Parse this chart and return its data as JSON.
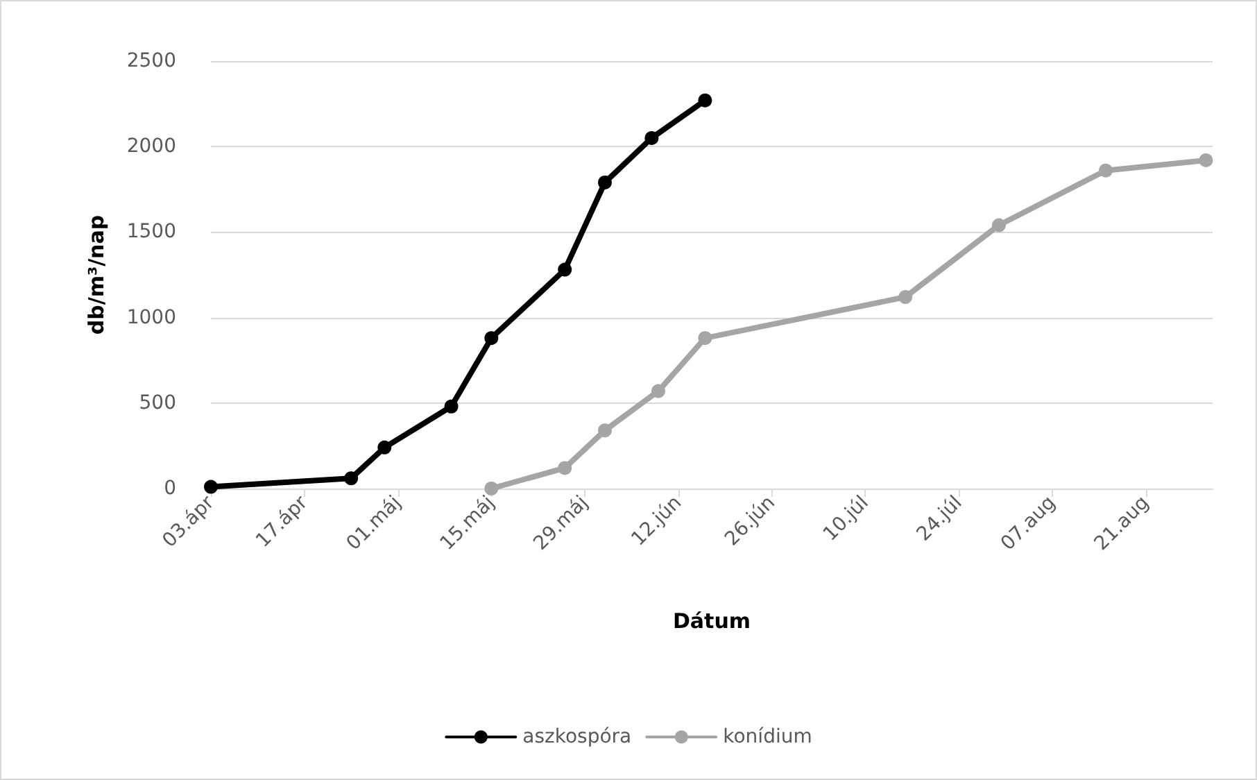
{
  "chart_data": {
    "type": "line",
    "xlabel": "Dátum",
    "ylabel": "db/m³/nap",
    "xlim": [
      "--04-03",
      "--08-31"
    ],
    "xticks": [
      {
        "value": "--04-03",
        "label": "03.ápr"
      },
      {
        "value": "--04-17",
        "label": "17.ápr"
      },
      {
        "value": "--05-01",
        "label": "01.máj"
      },
      {
        "value": "--05-15",
        "label": "15.máj"
      },
      {
        "value": "--05-29",
        "label": "29.máj"
      },
      {
        "value": "--06-12",
        "label": "12.jún"
      },
      {
        "value": "--06-26",
        "label": "26.jún"
      },
      {
        "value": "--07-10",
        "label": "10.júl"
      },
      {
        "value": "--07-24",
        "label": "24.júl"
      },
      {
        "value": "--08-07",
        "label": "07.aug"
      },
      {
        "value": "--08-21",
        "label": "21.aug"
      }
    ],
    "ylim": [
      0,
      2500
    ],
    "yticks": [
      0,
      500,
      1000,
      1500,
      2000,
      2500
    ],
    "grid": "y",
    "legend": "bottom",
    "marker": "circle",
    "line_style": "solid",
    "series": [
      {
        "name": "aszkospóra",
        "color": "#000000",
        "x": [
          "--04-03",
          "--04-24",
          "--04-29",
          "--05-09",
          "--05-15",
          "--05-26",
          "--06-01",
          "--06-08",
          "--06-16"
        ],
        "values": [
          10,
          60,
          240,
          480,
          880,
          1280,
          1790,
          2050,
          2270
        ]
      },
      {
        "name": "konídium",
        "color": "#a5a5a5",
        "x": [
          "--05-15",
          "--05-26",
          "--06-01",
          "--06-09",
          "--06-16",
          "--07-16",
          "--07-30",
          "--08-15",
          "--08-30"
        ],
        "values": [
          0,
          120,
          340,
          570,
          880,
          1120,
          1540,
          1860,
          1920
        ]
      }
    ]
  }
}
